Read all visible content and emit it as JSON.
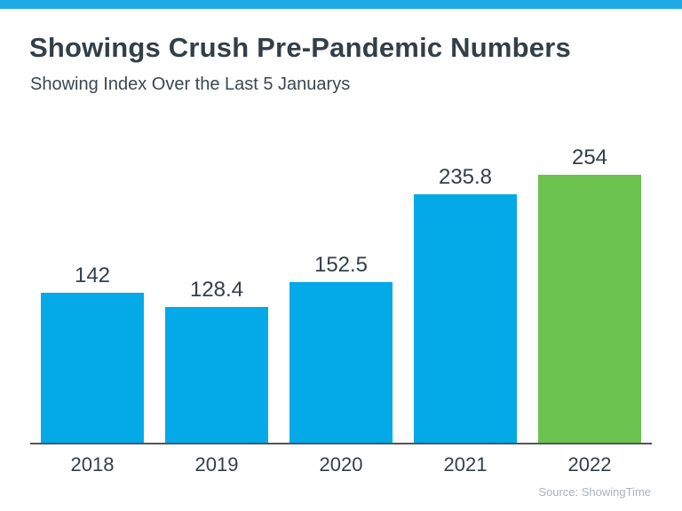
{
  "header": {
    "title": "Showings Crush Pre-Pandemic Numbers",
    "subtitle": "Showing Index Over the Last 5 Januarys"
  },
  "chart_data": {
    "type": "bar",
    "title": "Showings Crush Pre-Pandemic Numbers",
    "subtitle": "Showing Index Over the Last 5 Januarys",
    "categories": [
      "2018",
      "2019",
      "2020",
      "2021",
      "2022"
    ],
    "values": [
      142,
      128.4,
      152.5,
      235.8,
      254
    ],
    "value_labels": [
      "142",
      "128.4",
      "152.5",
      "235.8",
      "254"
    ],
    "bar_colors": [
      "#04A9E8",
      "#04A9E8",
      "#04A9E8",
      "#04A9E8",
      "#6CC24F"
    ],
    "xlabel": "",
    "ylabel": "",
    "ylim": [
      0,
      260
    ],
    "grid": false,
    "legend": false,
    "data_labels_position": "above bars",
    "highlight_category": "2022"
  },
  "footer": {
    "source": "Source: ShowingTime"
  },
  "colors": {
    "top_accent": "#1FAAE6",
    "bar_blue": "#04A9E8",
    "bar_green": "#6CC24F",
    "text_dark": "#333F48",
    "axis": "#53565A",
    "source_gray": "#A9B3BD"
  }
}
